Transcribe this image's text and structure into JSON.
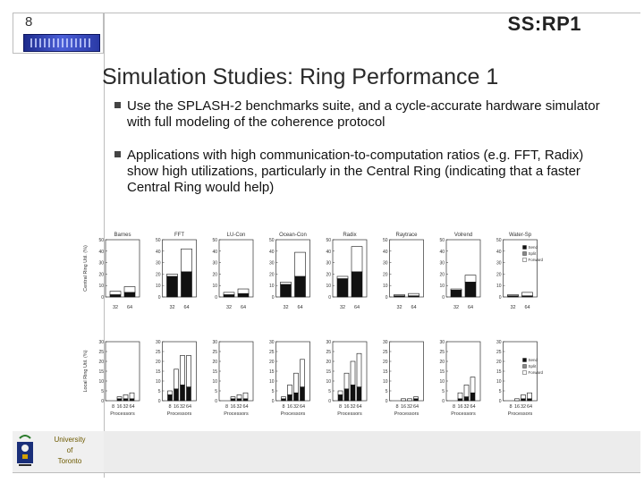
{
  "header": {
    "page_number": "8",
    "slide_id": "SS:RP1",
    "logo_icon": "research-group-logo-icon"
  },
  "title": "Simulation Studies: Ring Performance 1",
  "bullets": [
    "Use the SPLASH-2 benchmarks suite, and a cycle-accurate hardware simulator with full modeling of the coherence protocol",
    "Applications with high communication-to-computation ratios (e.g. FFT, Radix) show high utilizations, particularly in the Central Ring (indicating that a faster Central Ring would help)"
  ],
  "footer": {
    "university_lines": [
      "University",
      "of",
      "Toronto"
    ],
    "crest_icon": "university-crest-icon"
  },
  "chart_data": [
    {
      "type": "bar",
      "stacked": true,
      "ylabel": "Central Ring Util. (%)",
      "ylim": [
        0,
        50
      ],
      "yticks": [
        0,
        10,
        20,
        30,
        40,
        50
      ],
      "legend": [
        "Send",
        "Split",
        "Forward"
      ],
      "legend_position": "right",
      "panels": [
        {
          "title": "Barnes",
          "categories": [
            "32",
            "64"
          ],
          "series": [
            {
              "name": "Send",
              "values": [
                2,
                4
              ]
            },
            {
              "name": "Split",
              "values": [
                0,
                0
              ]
            },
            {
              "name": "Forward",
              "values": [
                3,
                5
              ]
            }
          ]
        },
        {
          "title": "FFT",
          "categories": [
            "32",
            "64"
          ],
          "series": [
            {
              "name": "Send",
              "values": [
                18,
                22
              ]
            },
            {
              "name": "Split",
              "values": [
                0,
                0
              ]
            },
            {
              "name": "Forward",
              "values": [
                2,
                20
              ]
            }
          ]
        },
        {
          "title": "LU-Con",
          "categories": [
            "32",
            "64"
          ],
          "series": [
            {
              "name": "Send",
              "values": [
                2,
                3
              ]
            },
            {
              "name": "Split",
              "values": [
                0,
                0
              ]
            },
            {
              "name": "Forward",
              "values": [
                2,
                4
              ]
            }
          ]
        },
        {
          "title": "Ocean-Con",
          "categories": [
            "32",
            "64"
          ],
          "series": [
            {
              "name": "Send",
              "values": [
                11,
                18
              ]
            },
            {
              "name": "Split",
              "values": [
                0,
                0
              ]
            },
            {
              "name": "Forward",
              "values": [
                2,
                21
              ]
            }
          ]
        },
        {
          "title": "Radix",
          "categories": [
            "32",
            "64"
          ],
          "series": [
            {
              "name": "Send",
              "values": [
                16,
                22
              ]
            },
            {
              "name": "Split",
              "values": [
                0,
                0
              ]
            },
            {
              "name": "Forward",
              "values": [
                2,
                22
              ]
            }
          ]
        },
        {
          "title": "Raytrace",
          "categories": [
            "32",
            "64"
          ],
          "series": [
            {
              "name": "Send",
              "values": [
                1,
                1
              ]
            },
            {
              "name": "Split",
              "values": [
                0,
                0
              ]
            },
            {
              "name": "Forward",
              "values": [
                1,
                2
              ]
            }
          ]
        },
        {
          "title": "Volrend",
          "categories": [
            "32",
            "64"
          ],
          "series": [
            {
              "name": "Send",
              "values": [
                6,
                13
              ]
            },
            {
              "name": "Split",
              "values": [
                0,
                0
              ]
            },
            {
              "name": "Forward",
              "values": [
                1,
                6
              ]
            }
          ]
        },
        {
          "title": "Water-Sp",
          "categories": [
            "32",
            "64"
          ],
          "series": [
            {
              "name": "Send",
              "values": [
                1,
                1
              ]
            },
            {
              "name": "Split",
              "values": [
                0,
                0
              ]
            },
            {
              "name": "Forward",
              "values": [
                1,
                3
              ]
            }
          ]
        }
      ]
    },
    {
      "type": "bar",
      "stacked": true,
      "ylabel": "Local Ring Util. (%)",
      "xlabel": "Processors",
      "ylim": [
        0,
        30
      ],
      "yticks": [
        0,
        5,
        10,
        15,
        20,
        25,
        30
      ],
      "legend": [
        "Send",
        "Split",
        "Forward"
      ],
      "legend_position": "right",
      "panels": [
        {
          "title": "",
          "categories": [
            "8",
            "16",
            "32",
            "64"
          ],
          "series": [
            {
              "name": "Send",
              "values": [
                0,
                1,
                1,
                1
              ]
            },
            {
              "name": "Split",
              "values": [
                0,
                0,
                0,
                0
              ]
            },
            {
              "name": "Forward",
              "values": [
                0,
                1,
                2,
                3
              ]
            }
          ]
        },
        {
          "title": "",
          "categories": [
            "8",
            "16",
            "32",
            "64"
          ],
          "series": [
            {
              "name": "Send",
              "values": [
                3,
                6,
                8,
                7
              ]
            },
            {
              "name": "Split",
              "values": [
                0,
                0,
                0,
                0
              ]
            },
            {
              "name": "Forward",
              "values": [
                2,
                10,
                15,
                16
              ]
            }
          ]
        },
        {
          "title": "",
          "categories": [
            "8",
            "16",
            "32",
            "64"
          ],
          "series": [
            {
              "name": "Send",
              "values": [
                0,
                1,
                1,
                1
              ]
            },
            {
              "name": "Split",
              "values": [
                0,
                0,
                0,
                0
              ]
            },
            {
              "name": "Forward",
              "values": [
                0,
                1,
                2,
                3
              ]
            }
          ]
        },
        {
          "title": "",
          "categories": [
            "8",
            "16",
            "32",
            "64"
          ],
          "series": [
            {
              "name": "Send",
              "values": [
                1,
                3,
                4,
                7
              ]
            },
            {
              "name": "Split",
              "values": [
                0,
                0,
                0,
                0
              ]
            },
            {
              "name": "Forward",
              "values": [
                1,
                5,
                10,
                14
              ]
            }
          ]
        },
        {
          "title": "",
          "categories": [
            "8",
            "16",
            "32",
            "64"
          ],
          "series": [
            {
              "name": "Send",
              "values": [
                3,
                6,
                8,
                7
              ]
            },
            {
              "name": "Split",
              "values": [
                0,
                0,
                0,
                0
              ]
            },
            {
              "name": "Forward",
              "values": [
                2,
                8,
                12,
                17
              ]
            }
          ]
        },
        {
          "title": "",
          "categories": [
            "8",
            "16",
            "32",
            "64"
          ],
          "series": [
            {
              "name": "Send",
              "values": [
                0,
                0,
                0,
                1
              ]
            },
            {
              "name": "Split",
              "values": [
                0,
                0,
                0,
                0
              ]
            },
            {
              "name": "Forward",
              "values": [
                0,
                1,
                1,
                1
              ]
            }
          ]
        },
        {
          "title": "",
          "categories": [
            "8",
            "16",
            "32",
            "64"
          ],
          "series": [
            {
              "name": "Send",
              "values": [
                0,
                1,
                2,
                4
              ]
            },
            {
              "name": "Split",
              "values": [
                0,
                0,
                0,
                0
              ]
            },
            {
              "name": "Forward",
              "values": [
                0,
                3,
                6,
                8
              ]
            }
          ]
        },
        {
          "title": "",
          "categories": [
            "8",
            "16",
            "32",
            "64"
          ],
          "series": [
            {
              "name": "Send",
              "values": [
                0,
                0,
                1,
                1
              ]
            },
            {
              "name": "Split",
              "values": [
                0,
                0,
                0,
                0
              ]
            },
            {
              "name": "Forward",
              "values": [
                0,
                1,
                2,
                3
              ]
            }
          ]
        }
      ]
    }
  ]
}
